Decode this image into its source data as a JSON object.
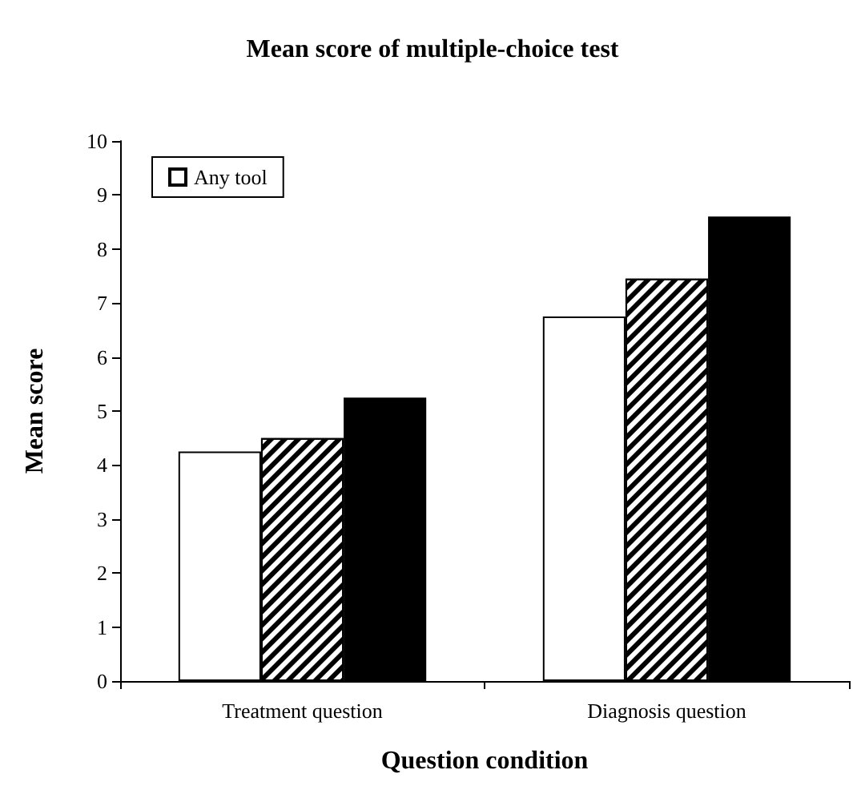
{
  "chart_data": {
    "type": "bar",
    "title": "Mean score of multiple-choice test",
    "xlabel": "Question condition",
    "ylabel": "Mean score",
    "categories": [
      "Treatment question",
      "Diagnosis question"
    ],
    "series": [
      {
        "name": "Any tool",
        "color": "#ffffff",
        "values": [
          4.25,
          6.75
        ]
      },
      {
        "color": "#000000",
        "values": [
          4.5,
          7.45
        ]
      },
      {
        "color": "#000000",
        "values": [
          5.25,
          8.6
        ]
      }
    ],
    "ylim": [
      0,
      10
    ],
    "yticks": [
      0,
      1,
      2,
      3,
      4,
      5,
      6,
      7,
      8,
      9,
      10
    ],
    "grid": false,
    "legend": "top left"
  }
}
